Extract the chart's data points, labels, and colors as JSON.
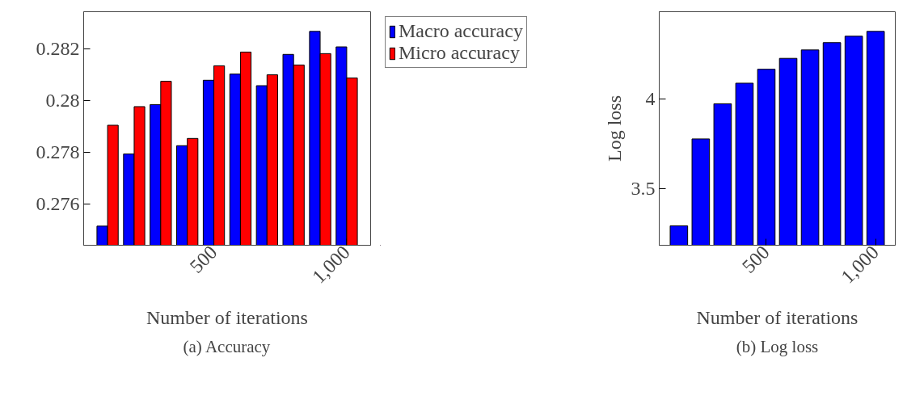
{
  "chart_data": [
    {
      "type": "bar",
      "xlabel": "Number of iterations",
      "annotations": [
        "(a) Accuracy"
      ],
      "x": [
        100,
        200,
        300,
        400,
        500,
        600,
        700,
        800,
        900,
        1000
      ],
      "series": [
        {
          "name": "Macro accuracy",
          "color": "#0000ff",
          "values": [
            0.27515,
            0.27794,
            0.27985,
            0.27826,
            0.28079,
            0.28103,
            0.28058,
            0.28179,
            0.28268,
            0.28208
          ]
        },
        {
          "name": "Micro accuracy",
          "color": "#ff0000",
          "values": [
            0.27905,
            0.27977,
            0.28075,
            0.27854,
            0.28135,
            0.28188,
            0.281,
            0.28138,
            0.28182,
            0.28088
          ]
        }
      ],
      "xlim": [
        10,
        1090
      ],
      "xticks": [
        500,
        {
          "value": 1000,
          "label": "1,000"
        }
      ],
      "ylim": [
        0.27441,
        0.28344
      ],
      "yticks": [
        0.276,
        0.278,
        0.28,
        0.282
      ],
      "legend": "top right"
    },
    {
      "type": "bar",
      "xlabel": "Number of iterations",
      "ylabel": "Log loss",
      "annotations": [
        "(b) Log loss"
      ],
      "x": [
        100,
        200,
        300,
        400,
        500,
        600,
        700,
        800,
        900,
        1000
      ],
      "series": [
        {
          "color": "#0000ff",
          "values": [
            3.291,
            3.777,
            3.974,
            4.089,
            4.167,
            4.228,
            4.275,
            4.316,
            4.352,
            4.379
          ]
        }
      ],
      "xlim": [
        10,
        1090
      ],
      "xticks": [
        500,
        {
          "value": 1000,
          "label": "1,000"
        }
      ],
      "ylim": [
        3.182,
        4.489
      ],
      "yticks": [
        3.5,
        4
      ]
    }
  ]
}
